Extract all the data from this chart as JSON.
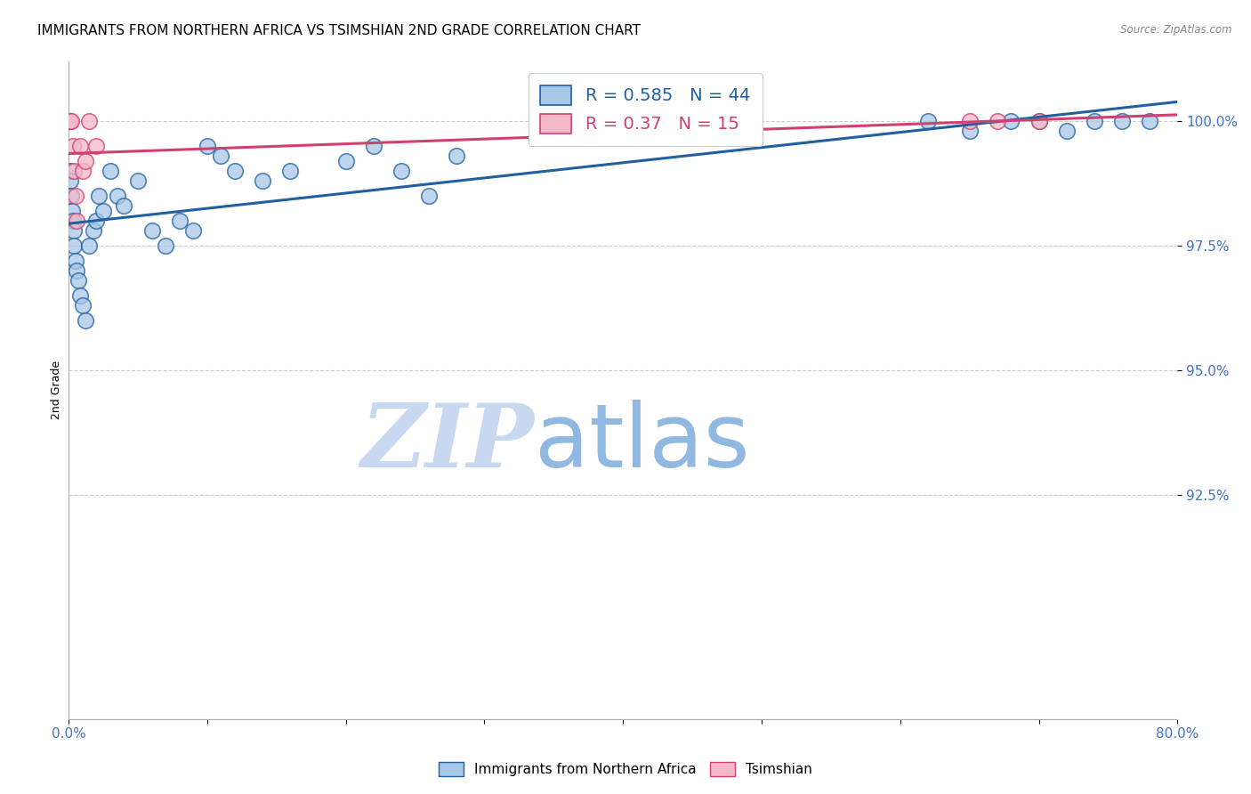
{
  "title": "IMMIGRANTS FROM NORTHERN AFRICA VS TSIMSHIAN 2ND GRADE CORRELATION CHART",
  "source": "Source: ZipAtlas.com",
  "ylabel": "2nd Grade",
  "xlim": [
    0.0,
    80.0
  ],
  "ylim": [
    88.0,
    101.2
  ],
  "yticks": [
    92.5,
    95.0,
    97.5,
    100.0
  ],
  "ytick_labels": [
    "92.5%",
    "95.0%",
    "97.5%",
    "100.0%"
  ],
  "xticks": [
    0.0,
    10.0,
    20.0,
    30.0,
    40.0,
    50.0,
    60.0,
    70.0,
    80.0
  ],
  "xtick_labels": [
    "0.0%",
    "",
    "",
    "",
    "",
    "",
    "",
    "",
    "80.0%"
  ],
  "legend_blue_label": "Immigrants from Northern Africa",
  "legend_pink_label": "Tsimshian",
  "R_blue": 0.585,
  "N_blue": 44,
  "R_pink": 0.37,
  "N_pink": 15,
  "blue_color": "#a8c8e8",
  "pink_color": "#f4b8c8",
  "blue_line_color": "#2060a0",
  "pink_line_color": "#d04070",
  "blue_scatter_x": [
    0.1,
    0.15,
    0.2,
    0.25,
    0.3,
    0.35,
    0.4,
    0.5,
    0.6,
    0.7,
    0.8,
    1.0,
    1.2,
    1.5,
    1.8,
    2.0,
    2.2,
    2.5,
    3.0,
    3.5,
    4.0,
    5.0,
    6.0,
    7.0,
    8.0,
    9.0,
    10.0,
    11.0,
    12.0,
    14.0,
    16.0,
    20.0,
    22.0,
    24.0,
    26.0,
    28.0,
    62.0,
    65.0,
    68.0,
    70.0,
    72.0,
    74.0,
    76.0,
    78.0
  ],
  "blue_scatter_y": [
    99.0,
    98.8,
    98.5,
    98.2,
    98.0,
    97.8,
    97.5,
    97.2,
    97.0,
    96.8,
    96.5,
    96.3,
    96.0,
    97.5,
    97.8,
    98.0,
    98.5,
    98.2,
    99.0,
    98.5,
    98.3,
    98.8,
    97.8,
    97.5,
    98.0,
    97.8,
    99.5,
    99.3,
    99.0,
    98.8,
    99.0,
    99.2,
    99.5,
    99.0,
    98.5,
    99.3,
    100.0,
    99.8,
    100.0,
    100.0,
    99.8,
    100.0,
    100.0,
    100.0
  ],
  "pink_scatter_x": [
    0.1,
    0.15,
    0.2,
    0.3,
    0.4,
    0.5,
    0.6,
    0.8,
    1.0,
    1.2,
    1.5,
    2.0,
    65.0,
    67.0,
    70.0
  ],
  "pink_scatter_y": [
    100.0,
    100.0,
    100.0,
    99.5,
    99.0,
    98.5,
    98.0,
    99.5,
    99.0,
    99.2,
    100.0,
    99.5,
    100.0,
    100.0,
    100.0
  ],
  "watermark_zip": "ZIP",
  "watermark_atlas": "atlas",
  "watermark_color_zip": "#c8d8f0",
  "watermark_color_atlas": "#90b8e0",
  "background_color": "#ffffff",
  "grid_color": "#cccccc",
  "axis_label_color": "#4472c4",
  "title_fontsize": 11,
  "ylabel_fontsize": 9
}
